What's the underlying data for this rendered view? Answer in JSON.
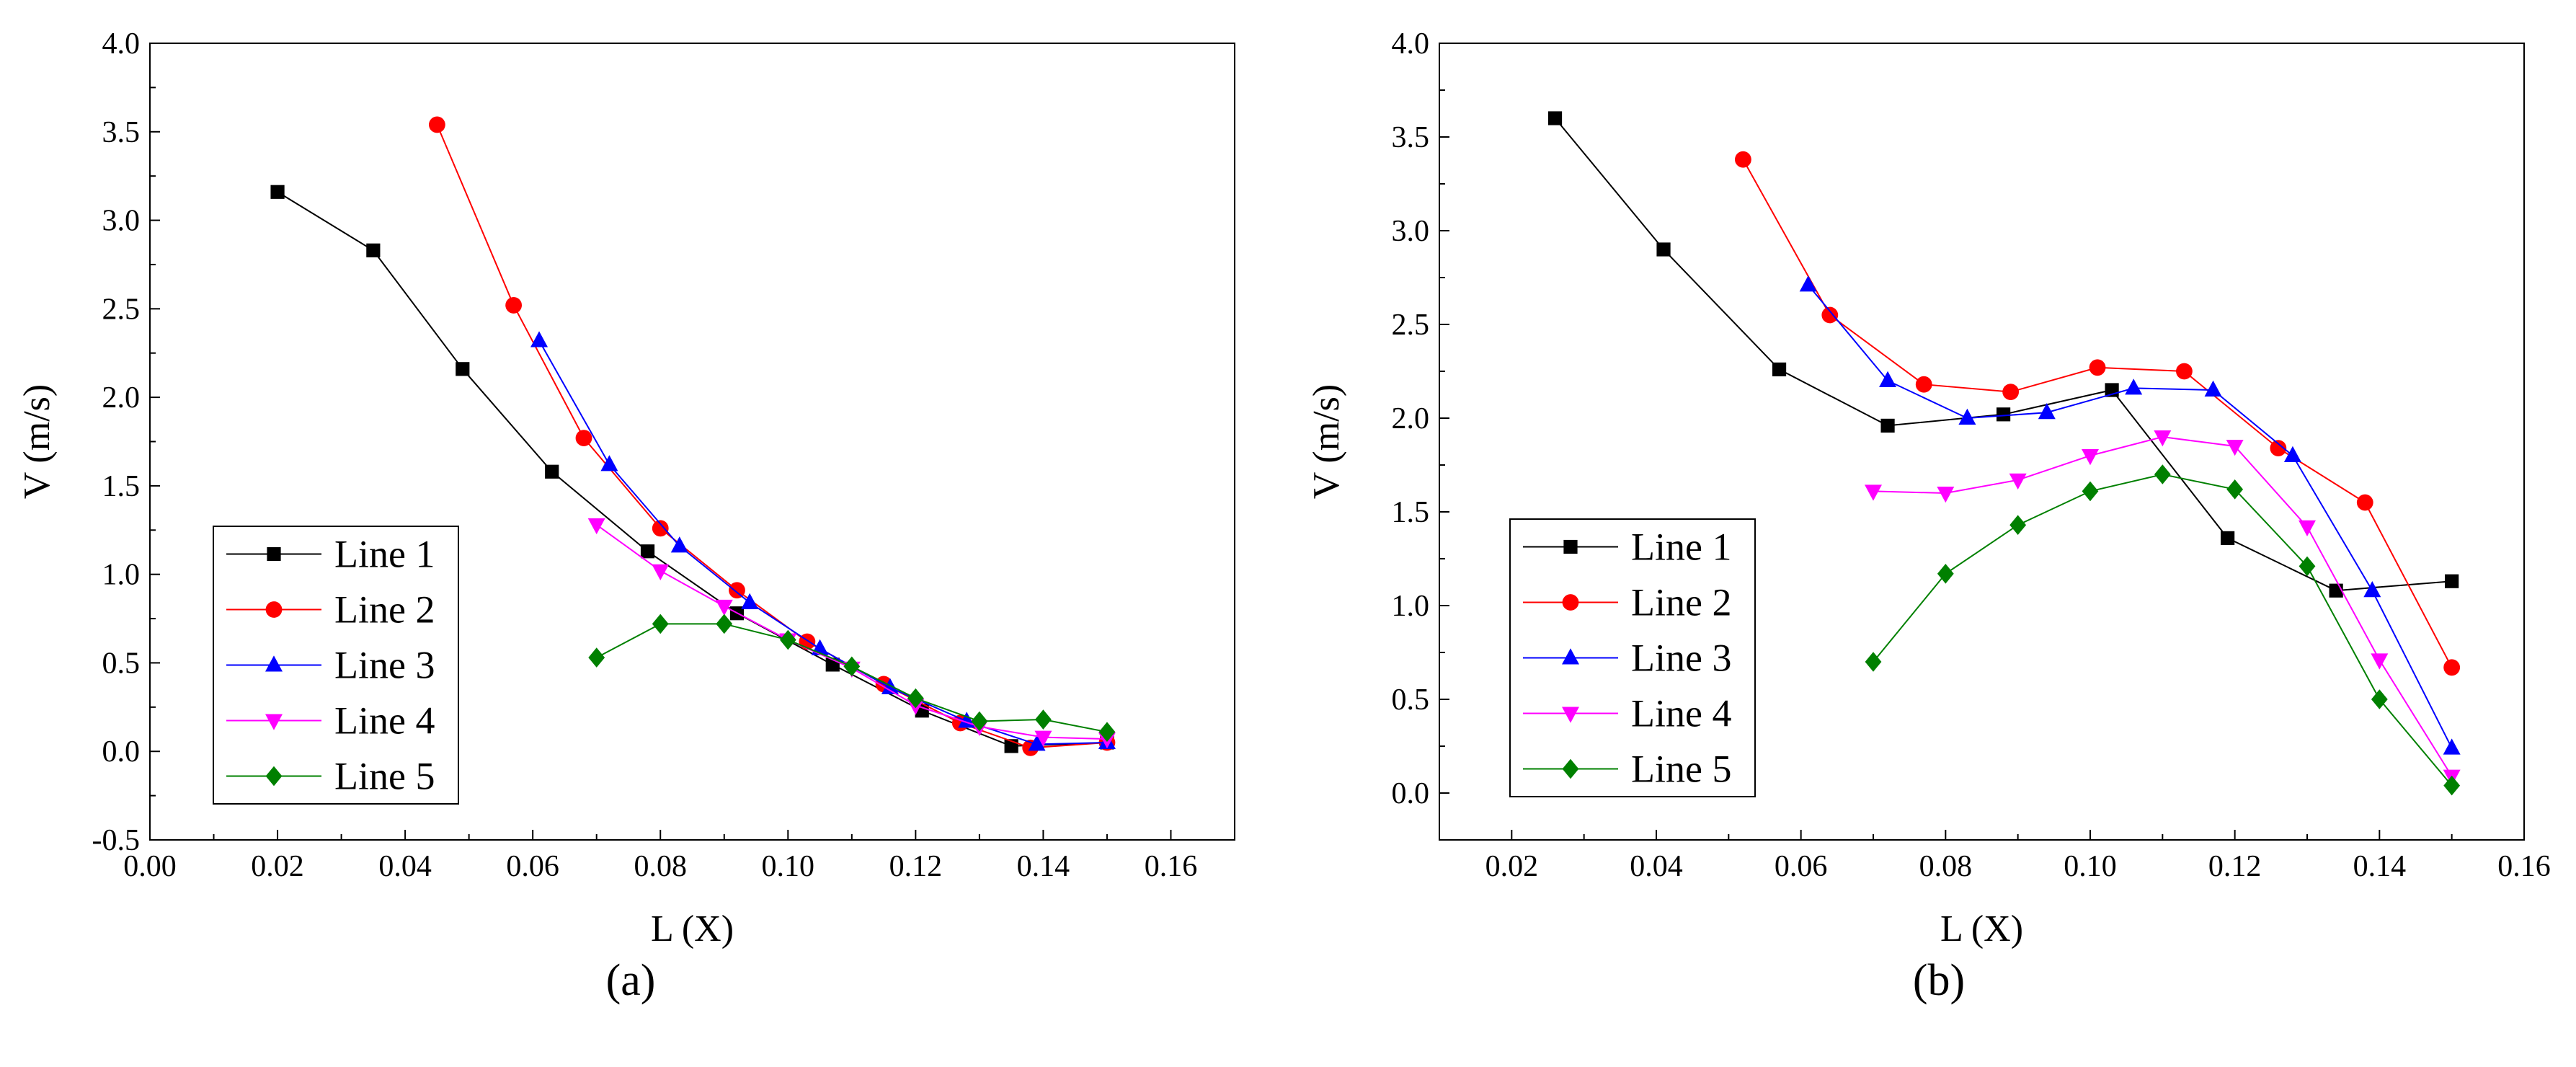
{
  "figure": {
    "panel_labels": [
      "(a)",
      "(b)"
    ]
  },
  "colors": {
    "Line 1": "#000000",
    "Line 2": "#ff0000",
    "Line 3": "#0000ff",
    "Line 4": "#ff00ff",
    "Line 5": "#008000"
  },
  "chart_data": [
    {
      "type": "line",
      "panel": "(a)",
      "title": "",
      "xlabel": "L (X)",
      "ylabel": "V (m/s)",
      "xlim": [
        0.0,
        0.17
      ],
      "ylim": [
        -0.5,
        4.0
      ],
      "xticks": [
        "0.00",
        "0.02",
        "0.04",
        "0.06",
        "0.08",
        "0.10",
        "0.12",
        "0.14",
        "0.16"
      ],
      "yticks": [
        "-0.5",
        "0.0",
        "0.5",
        "1.0",
        "1.5",
        "2.0",
        "2.5",
        "3.0",
        "3.5",
        "4.0"
      ],
      "legend_position": "lower-left",
      "grid": false,
      "series": [
        {
          "name": "Line 1",
          "marker": "square",
          "x": [
            0.02,
            0.035,
            0.049,
            0.063,
            0.078,
            0.092,
            0.107,
            0.121,
            0.135,
            0.15
          ],
          "y": [
            3.16,
            2.83,
            2.16,
            1.58,
            1.13,
            0.78,
            0.49,
            0.23,
            0.03,
            0.05
          ]
        },
        {
          "name": "Line 2",
          "marker": "circle",
          "x": [
            0.045,
            0.057,
            0.068,
            0.08,
            0.092,
            0.103,
            0.115,
            0.127,
            0.138,
            0.15
          ],
          "y": [
            3.54,
            2.52,
            1.77,
            1.26,
            0.91,
            0.62,
            0.38,
            0.16,
            0.02,
            0.05
          ]
        },
        {
          "name": "Line 3",
          "marker": "triangle-up",
          "x": [
            0.061,
            0.072,
            0.083,
            0.094,
            0.105,
            0.116,
            0.128,
            0.139,
            0.15
          ],
          "y": [
            2.32,
            1.62,
            1.16,
            0.84,
            0.58,
            0.36,
            0.17,
            0.04,
            0.05
          ]
        },
        {
          "name": "Line 4",
          "marker": "triangle-down",
          "x": [
            0.07,
            0.08,
            0.09,
            0.1,
            0.11,
            0.12,
            0.13,
            0.14,
            0.15
          ],
          "y": [
            1.28,
            1.02,
            0.82,
            0.63,
            0.47,
            0.26,
            0.14,
            0.08,
            0.07
          ]
        },
        {
          "name": "Line 5",
          "marker": "diamond",
          "x": [
            0.07,
            0.08,
            0.09,
            0.1,
            0.11,
            0.12,
            0.13,
            0.14,
            0.15
          ],
          "y": [
            0.53,
            0.72,
            0.72,
            0.63,
            0.48,
            0.3,
            0.17,
            0.18,
            0.11
          ]
        }
      ]
    },
    {
      "type": "line",
      "panel": "(b)",
      "title": "",
      "xlabel": "L (X)",
      "ylabel": "V (m/s)",
      "xlim": [
        0.01,
        0.16
      ],
      "ylim": [
        -0.25,
        4.0
      ],
      "xticks": [
        "0.02",
        "0.04",
        "0.06",
        "0.08",
        "0.10",
        "0.12",
        "0.14",
        "0.16"
      ],
      "yticks": [
        "0.0",
        "0.5",
        "1.0",
        "1.5",
        "2.0",
        "2.5",
        "3.0",
        "3.5",
        "4.0"
      ],
      "legend_position": "lower-left",
      "grid": false,
      "series": [
        {
          "name": "Line 1",
          "marker": "square",
          "x": [
            0.026,
            0.041,
            0.057,
            0.072,
            0.088,
            0.103,
            0.119,
            0.134,
            0.15
          ],
          "y": [
            3.6,
            2.9,
            2.26,
            1.96,
            2.02,
            2.15,
            1.36,
            1.08,
            1.13
          ]
        },
        {
          "name": "Line 2",
          "marker": "circle",
          "x": [
            0.052,
            0.064,
            0.077,
            0.089,
            0.101,
            0.113,
            0.126,
            0.138,
            0.15
          ],
          "y": [
            3.38,
            2.55,
            2.18,
            2.14,
            2.27,
            2.25,
            1.84,
            1.55,
            0.67
          ]
        },
        {
          "name": "Line 3",
          "marker": "triangle-up",
          "x": [
            0.061,
            0.072,
            0.083,
            0.094,
            0.106,
            0.117,
            0.128,
            0.139,
            0.15
          ],
          "y": [
            2.71,
            2.2,
            2.0,
            2.03,
            2.16,
            2.15,
            1.8,
            1.08,
            0.24
          ]
        },
        {
          "name": "Line 4",
          "marker": "triangle-down",
          "x": [
            0.07,
            0.08,
            0.09,
            0.1,
            0.11,
            0.12,
            0.13,
            0.14,
            0.15
          ],
          "y": [
            1.61,
            1.6,
            1.67,
            1.8,
            1.9,
            1.85,
            1.42,
            0.71,
            0.09
          ]
        },
        {
          "name": "Line 5",
          "marker": "diamond",
          "x": [
            0.07,
            0.08,
            0.09,
            0.1,
            0.11,
            0.12,
            0.13,
            0.14,
            0.15
          ],
          "y": [
            0.7,
            1.17,
            1.43,
            1.61,
            1.7,
            1.62,
            1.21,
            0.5,
            0.04
          ]
        }
      ]
    }
  ]
}
